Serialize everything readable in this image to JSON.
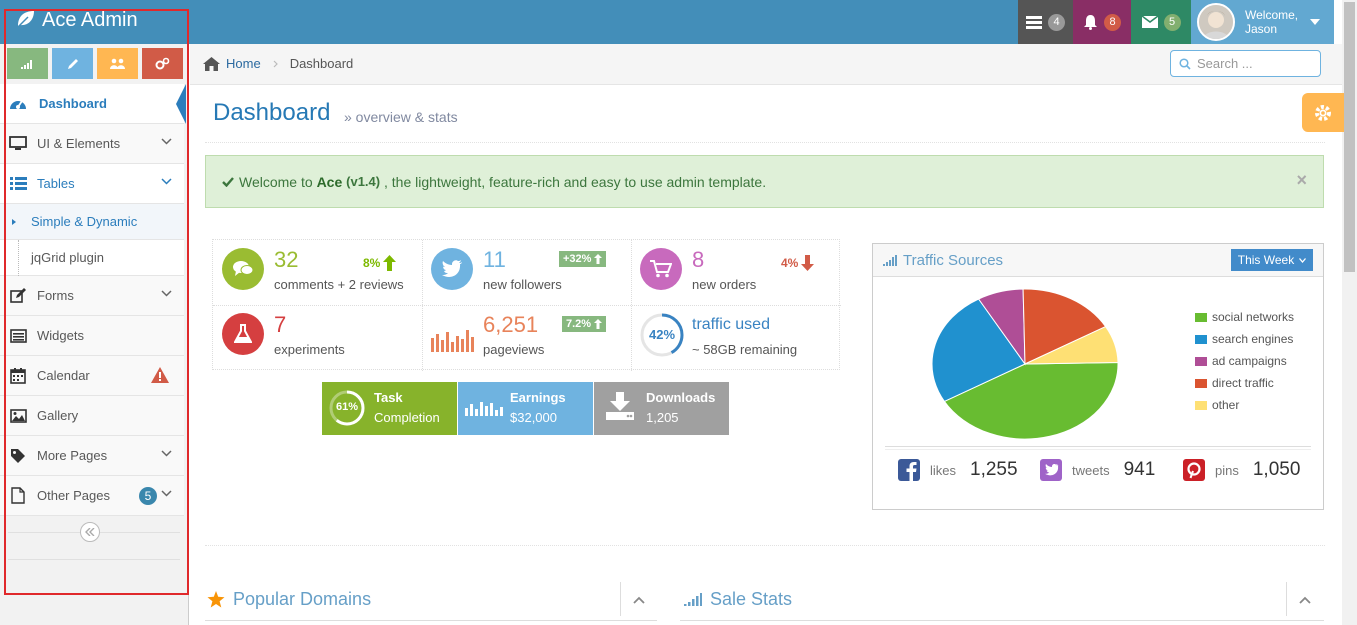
{
  "navbar": {
    "brand": "Ace Admin",
    "tasks_count": "4",
    "notifications_count": "8",
    "messages_count": "5",
    "welcome_line1": "Welcome,",
    "welcome_line2": "Jason",
    "colors": {
      "navbar": "#438eb9",
      "tasks": "#555555",
      "notifications": "#892e65",
      "messages": "#2e8965",
      "user": "#62a8d1"
    }
  },
  "sidebar": {
    "shortcuts": [
      {
        "icon": "signal-icon",
        "color": "#87b87f"
      },
      {
        "icon": "pencil-icon",
        "color": "#6fb3e0"
      },
      {
        "icon": "users-icon",
        "color": "#ffb752"
      },
      {
        "icon": "cogs-icon",
        "color": "#d15b47"
      }
    ],
    "items": [
      {
        "label": "Dashboard",
        "icon": "tachometer-icon"
      },
      {
        "label": "UI & Elements",
        "icon": "desktop-icon"
      },
      {
        "label": "Tables",
        "icon": "list-icon"
      },
      {
        "label": "Simple & Dynamic"
      },
      {
        "label": "jqGrid plugin"
      },
      {
        "label": "Forms",
        "icon": "pencil-square-icon"
      },
      {
        "label": "Widgets",
        "icon": "list-alt-icon"
      },
      {
        "label": "Calendar",
        "icon": "calendar-icon"
      },
      {
        "label": "Gallery",
        "icon": "picture-icon"
      },
      {
        "label": "More Pages",
        "icon": "tag-icon"
      },
      {
        "label": "Other Pages",
        "icon": "file-icon",
        "badge": "5"
      }
    ]
  },
  "breadcrumb": {
    "home": "Home",
    "current": "Dashboard"
  },
  "search": {
    "placeholder": "Search ..."
  },
  "page": {
    "title": "Dashboard",
    "subtitle": "» overview & stats"
  },
  "alert": {
    "pre": "Welcome to",
    "brand": "Ace",
    "version": "(v1.4)",
    "post": ", the lightweight, feature-rich and easy to use admin template."
  },
  "infoboxes": [
    {
      "number": "32",
      "label": "comments + 2 reviews",
      "stat": "8%",
      "color": "#9abc32"
    },
    {
      "number": "11",
      "label": "new followers",
      "stat": "+32%",
      "color": "#6fb3e0"
    },
    {
      "number": "8",
      "label": "new orders",
      "stat": "4%",
      "color": "#c86abd"
    },
    {
      "number": "7",
      "label": "experiments",
      "color": "#d53f40"
    },
    {
      "number": "6,251",
      "label": "pageviews",
      "stat": "7.2%",
      "color": "#e8835a"
    },
    {
      "number": "traffic used",
      "label": "~ 58GB remaining",
      "percent": "42%",
      "color": "#3983c2"
    }
  ],
  "bigboxes": [
    {
      "title": "Task",
      "sub": "Completion",
      "percent": "61%",
      "color": "#87b32b"
    },
    {
      "title": "Earnings",
      "sub": "$32,000",
      "color": "#6fb3e0"
    },
    {
      "title": "Downloads",
      "sub": "1,205",
      "color": "#a0a0a0"
    }
  ],
  "traffic": {
    "title": "Traffic Sources",
    "range_button": "This Week",
    "legend": [
      "social networks",
      "search engines",
      "ad campaigns",
      "direct traffic",
      "other"
    ],
    "colors": [
      "#68bc31",
      "#2091cf",
      "#af4e96",
      "#da5430",
      "#fee074"
    ],
    "social": [
      {
        "label": "likes",
        "value": "1,255",
        "icon": "facebook-icon"
      },
      {
        "label": "tweets",
        "value": "941",
        "icon": "twitter-icon"
      },
      {
        "label": "pins",
        "value": "1,050",
        "icon": "pinterest-icon"
      }
    ]
  },
  "widgets": {
    "popular_domains": "Popular Domains",
    "sale_stats": "Sale Stats"
  }
}
